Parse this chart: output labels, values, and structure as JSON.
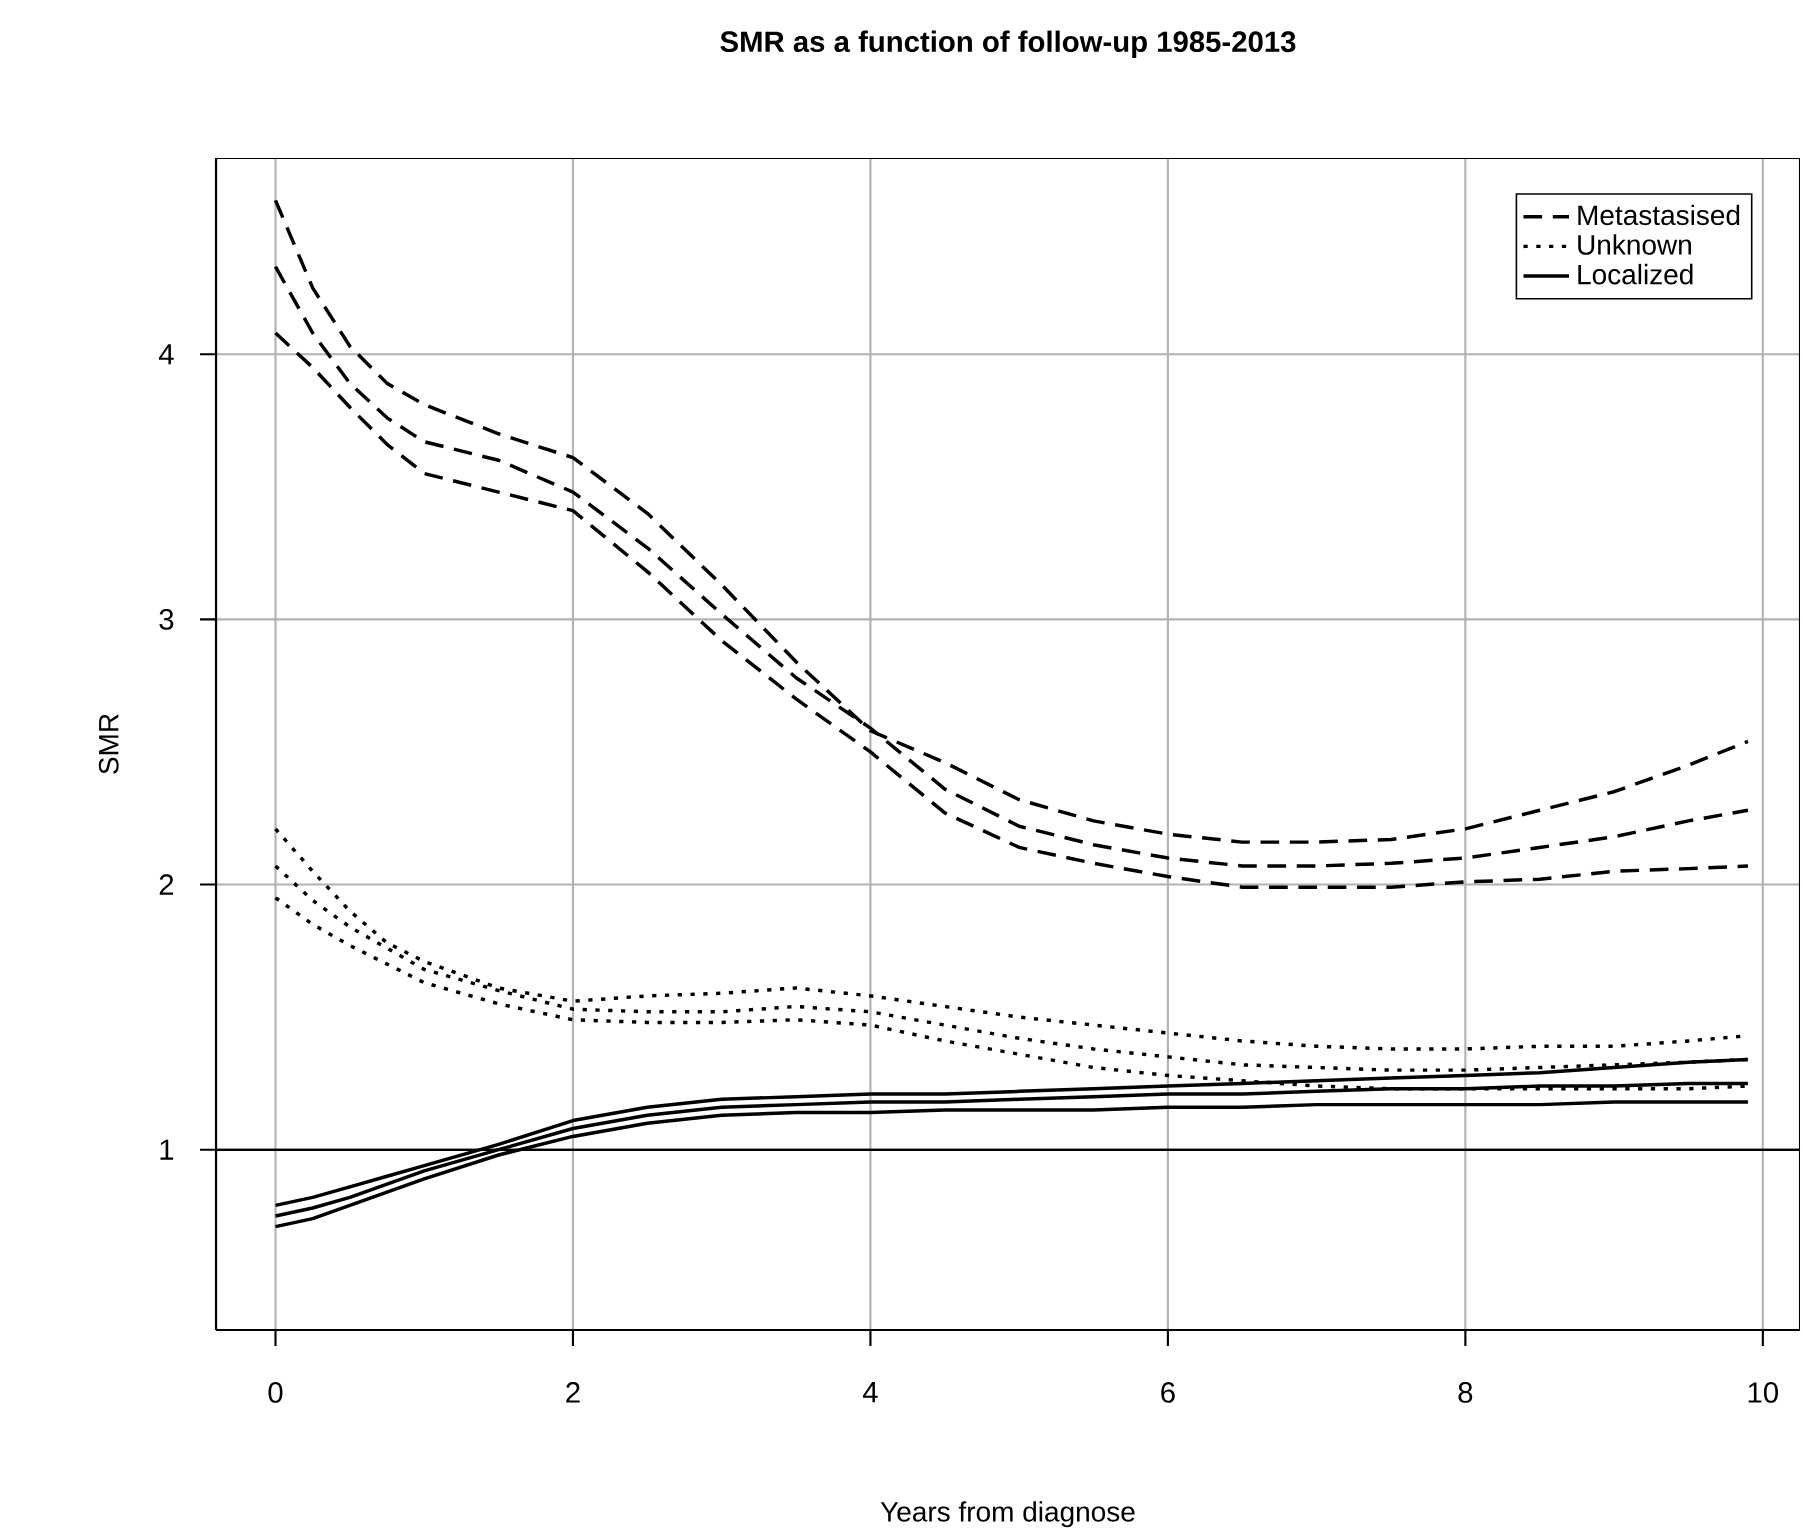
{
  "chart_data": {
    "type": "line",
    "title": "SMR as a function of follow-up 1985-2013",
    "xlabel": "Years from diagnose",
    "ylabel": "SMR",
    "x": [
      0,
      0.25,
      0.5,
      0.75,
      1,
      1.5,
      2,
      2.5,
      3,
      3.5,
      4,
      4.5,
      5,
      5.5,
      6,
      6.5,
      7,
      7.5,
      8,
      8.5,
      9,
      9.5,
      9.9
    ],
    "series": [
      {
        "name": "Metastasised",
        "color": "#000000",
        "line_style": "dashed",
        "values": [
          4.33,
          4.08,
          3.89,
          3.76,
          3.67,
          3.6,
          3.48,
          3.27,
          3.02,
          2.78,
          2.59,
          2.36,
          2.22,
          2.15,
          2.1,
          2.07,
          2.07,
          2.08,
          2.1,
          2.14,
          2.18,
          2.24,
          2.28
        ]
      },
      {
        "color": "#000000",
        "line_style": "dashed",
        "values": [
          4.08,
          3.95,
          3.8,
          3.66,
          3.55,
          3.48,
          3.41,
          3.18,
          2.92,
          2.7,
          2.5,
          2.27,
          2.14,
          2.08,
          2.03,
          1.99,
          1.99,
          1.99,
          2.01,
          2.02,
          2.05,
          2.06,
          2.07
        ]
      },
      {
        "color": "#000000",
        "line_style": "dashed",
        "values": [
          4.58,
          4.25,
          4.03,
          3.89,
          3.81,
          3.7,
          3.61,
          3.4,
          3.13,
          2.84,
          2.58,
          2.46,
          2.32,
          2.24,
          2.19,
          2.16,
          2.16,
          2.17,
          2.21,
          2.28,
          2.35,
          2.45,
          2.54
        ]
      },
      {
        "name": "Unknown",
        "color": "#000000",
        "line_style": "dotted",
        "values": [
          2.07,
          1.94,
          1.84,
          1.76,
          1.68,
          1.6,
          1.53,
          1.52,
          1.52,
          1.54,
          1.52,
          1.47,
          1.42,
          1.38,
          1.35,
          1.32,
          1.31,
          1.3,
          1.3,
          1.31,
          1.32,
          1.33,
          1.34
        ]
      },
      {
        "color": "#000000",
        "line_style": "dotted",
        "values": [
          1.95,
          1.85,
          1.77,
          1.7,
          1.63,
          1.55,
          1.49,
          1.48,
          1.48,
          1.49,
          1.47,
          1.41,
          1.36,
          1.31,
          1.28,
          1.26,
          1.24,
          1.23,
          1.23,
          1.23,
          1.23,
          1.23,
          1.24
        ]
      },
      {
        "color": "#000000",
        "line_style": "dotted",
        "values": [
          2.21,
          2.05,
          1.9,
          1.78,
          1.71,
          1.61,
          1.56,
          1.58,
          1.59,
          1.61,
          1.58,
          1.54,
          1.5,
          1.47,
          1.44,
          1.41,
          1.39,
          1.38,
          1.38,
          1.39,
          1.39,
          1.41,
          1.43
        ]
      },
      {
        "name": "Localized",
        "color": "#000000",
        "line_style": "solid",
        "values": [
          0.75,
          0.78,
          0.82,
          0.87,
          0.92,
          1.0,
          1.08,
          1.13,
          1.16,
          1.17,
          1.18,
          1.18,
          1.19,
          1.2,
          1.21,
          1.21,
          1.22,
          1.23,
          1.23,
          1.24,
          1.24,
          1.25,
          1.25
        ]
      },
      {
        "color": "#000000",
        "line_style": "solid",
        "values": [
          0.71,
          0.74,
          0.79,
          0.84,
          0.89,
          0.98,
          1.05,
          1.1,
          1.13,
          1.14,
          1.14,
          1.15,
          1.15,
          1.15,
          1.16,
          1.16,
          1.17,
          1.17,
          1.17,
          1.17,
          1.18,
          1.18,
          1.18
        ]
      },
      {
        "color": "#000000",
        "line_style": "solid",
        "values": [
          0.79,
          0.82,
          0.86,
          0.9,
          0.94,
          1.02,
          1.11,
          1.16,
          1.19,
          1.2,
          1.21,
          1.21,
          1.22,
          1.23,
          1.24,
          1.25,
          1.26,
          1.27,
          1.28,
          1.29,
          1.31,
          1.33,
          1.34
        ]
      }
    ],
    "xlim": [
      -0.4,
      10.25
    ],
    "ylim": [
      0.32,
      4.74
    ],
    "xticks": [
      0,
      2,
      4,
      6,
      8,
      10
    ],
    "yticks": [
      1,
      2,
      3,
      4
    ],
    "ref_lines": [
      {
        "axis": "y",
        "value": 1,
        "color": "#000000"
      }
    ],
    "grid": true,
    "legend": "top right",
    "marker": "none"
  }
}
